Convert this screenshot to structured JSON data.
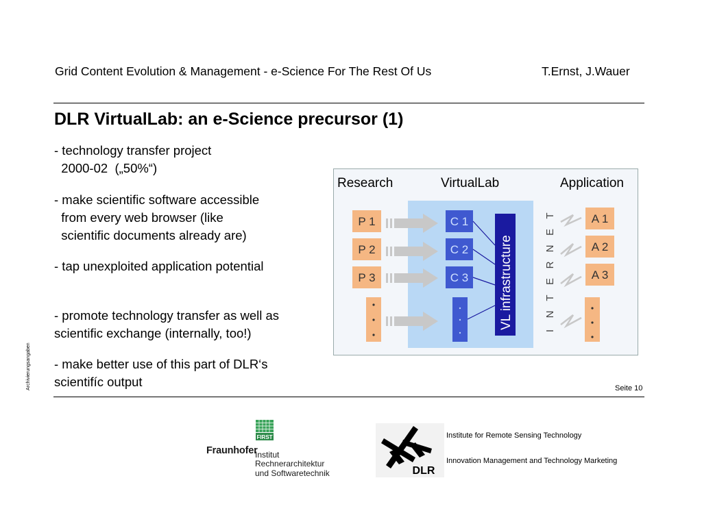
{
  "header": {
    "title": "Grid Content Evolution & Management - e-Science For The Rest Of Us",
    "authors": "T.Ernst, J.Wauer"
  },
  "slide": {
    "title": "DLR VirtualLab: an e-Science precursor (1)",
    "bullets": [
      "- technology transfer project\n  2000-02  („50%“)",
      "- make scientific software accessible\n  from every web browser (like\n  scientific documents already are)",
      "- tap unexploited application potential",
      "- promote technology transfer as well as\nscientific exchange (internally, too!)",
      "- make better use of this part of DLR‘s\nscientifíc output"
    ],
    "side_label": "Archivierungsangaben",
    "page_number": "Seite 10"
  },
  "diagram": {
    "headers": {
      "research": "Research",
      "virtuallab": "VirtualLab",
      "application": "Application"
    },
    "research_boxes": [
      "P 1",
      "P 2",
      "P 3"
    ],
    "component_boxes": [
      "C 1",
      "C 2",
      "C 3"
    ],
    "application_boxes": [
      "A 1",
      "A 2",
      "A 3"
    ],
    "infrastructure_label": "VL  infrastructure",
    "internet_letters": [
      "I",
      "N",
      "T",
      "E",
      "R",
      "N",
      "E",
      "T"
    ],
    "colors": {
      "orange": "#f5b783",
      "virtuallab_bg": "#b9d8f5",
      "component": "#3f59d0",
      "infrastructure": "#1a1aa0",
      "arrow": "#c8c8c8"
    }
  },
  "footer": {
    "fraunhofer_badge": "FIRST",
    "fraunhofer_name": "Fraunhofer",
    "fraunhofer_institute": [
      "Institut",
      "Rechnerarchitektur",
      "und Softwaretechnik"
    ],
    "dlr_name": "DLR",
    "dlr_lines": [
      "Institute for Remote Sensing Technology",
      "Innovation Management and Technology Marketing"
    ]
  }
}
